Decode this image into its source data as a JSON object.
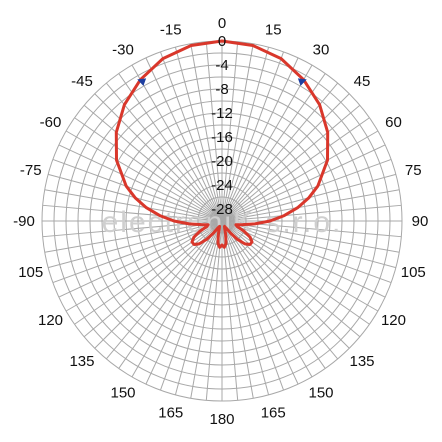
{
  "watermark": "electroniK s.r.o.",
  "chart_data": {
    "type": "polar-line",
    "angle_unit": "degrees",
    "angle_ticks": [
      0,
      15,
      30,
      45,
      60,
      75,
      90,
      105,
      120,
      135,
      150,
      165,
      180,
      -165,
      -150,
      -135,
      -120,
      -105,
      -90,
      -75,
      -60,
      -45,
      -30,
      -15
    ],
    "angle_tick_labels": [
      "0",
      "15",
      "30",
      "45",
      "60",
      "75",
      "90",
      "105",
      "120",
      "135",
      "150",
      "165",
      "180",
      "165",
      "150",
      "135",
      "120",
      "105",
      "-90",
      "-75",
      "-60",
      "-45",
      "-30",
      "-15"
    ],
    "radial_ticks": [
      0,
      -4,
      -8,
      -12,
      -16,
      -20,
      -24,
      -28
    ],
    "radial_tick_labels": [
      "0",
      "-4",
      "-8",
      "-12",
      "-16",
      "-20",
      "-24",
      "-28"
    ],
    "radial_range": [
      -30,
      0
    ],
    "grid": true,
    "series": [
      {
        "color": "#d9372b",
        "angles": [
          0,
          10,
          20,
          30,
          40,
          50,
          60,
          70,
          75,
          80,
          85,
          90,
          95,
          100,
          105,
          110,
          115,
          120,
          125,
          130,
          135,
          140,
          145,
          150,
          155,
          160,
          165,
          170,
          175,
          180,
          -175,
          -170,
          -165,
          -160,
          -155,
          -150,
          -145,
          -140,
          -135,
          -130,
          -125,
          -120,
          -115,
          -110,
          -105,
          -100,
          -95,
          -90,
          -85,
          -80,
          -75,
          -70,
          -60,
          -50,
          -40,
          -30,
          -20,
          -10
        ],
        "values": [
          0,
          -0.3,
          -1.2,
          -2.8,
          -4.7,
          -7.0,
          -9.7,
          -13.0,
          -15.0,
          -17.2,
          -19.6,
          -22.0,
          -24.5,
          -26.5,
          -27.6,
          -27.3,
          -25.9,
          -24.6,
          -23.9,
          -23.9,
          -24.6,
          -26.0,
          -27.6,
          -28.7,
          -29.0,
          -28.7,
          -27.6,
          -26.2,
          -25.6,
          -26.0,
          -25.6,
          -26.2,
          -27.6,
          -28.7,
          -29.0,
          -28.7,
          -27.6,
          -26.0,
          -24.6,
          -23.9,
          -23.9,
          -24.6,
          -25.9,
          -27.3,
          -27.6,
          -26.5,
          -24.5,
          -22.0,
          -19.6,
          -17.2,
          -15.0,
          -13.0,
          -9.7,
          -7.0,
          -4.7,
          -2.8,
          -1.2,
          -0.3
        ]
      }
    ],
    "markers": [
      {
        "angle": -30,
        "value": -3,
        "color": "#1e3fa0"
      },
      {
        "angle": 30,
        "value": -3,
        "color": "#1e3fa0"
      }
    ]
  }
}
